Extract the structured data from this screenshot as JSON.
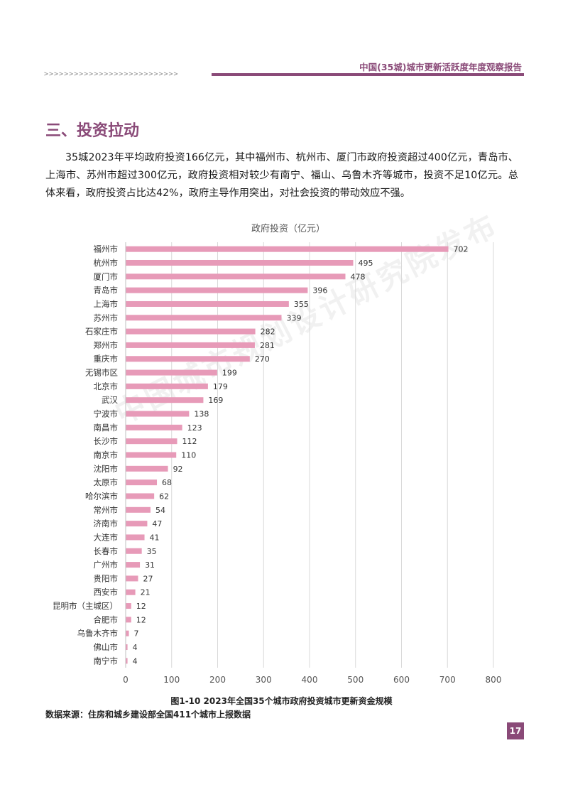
{
  "header": {
    "report_title": "中国(35城)城市更新活跃度年度观察报告",
    "arrows": ">>>>>>>>>>>>>>>>>>>>>>>>>>>"
  },
  "section": {
    "title": "三、投资拉动",
    "paragraph": "35城2023年平均政府投资166亿元，其中福州市、杭州市、厦门市政府投资超过400亿元，青岛市、上海市、苏州市超过300亿元，政府投资相对较少有南宁、福山、乌鲁木齐等城市，投资不足10亿元。总体来看，政府投资占比达42%，政府主导作用突出，对社会投资的带动效应不强。"
  },
  "watermark": "中国城市规划设计研究院发布",
  "chart_data": {
    "type": "bar",
    "orientation": "horizontal",
    "title": "政府投资（亿元）",
    "categories": [
      "福州市",
      "杭州市",
      "厦门市",
      "青岛市",
      "上海市",
      "苏州市",
      "石家庄市",
      "郑州市",
      "重庆市",
      "无锡市区",
      "北京市",
      "武汉",
      "宁波市",
      "南昌市",
      "长沙市",
      "南京市",
      "沈阳市",
      "太原市",
      "哈尔滨市",
      "常州市",
      "济南市",
      "大连市",
      "长春市",
      "广州市",
      "贵阳市",
      "西安市",
      "昆明市（主城区）",
      "合肥市",
      "乌鲁木齐市",
      "佛山市",
      "南宁市"
    ],
    "values": [
      702,
      495,
      478,
      396,
      355,
      339,
      282,
      281,
      270,
      199,
      179,
      169,
      138,
      123,
      112,
      110,
      92,
      68,
      62,
      54,
      47,
      41,
      35,
      31,
      27,
      21,
      12,
      12,
      7,
      4,
      4
    ],
    "xlim": [
      0,
      800
    ],
    "xticks": [
      "0",
      "100",
      "200",
      "300",
      "400",
      "500",
      "600",
      "700",
      "800"
    ],
    "grid": true,
    "bar_color": "#e79ab8"
  },
  "caption": "图1-10 2023年全国35个城市政府投资城市更新资金规模",
  "source": "数据来源：住房和城乡建设部全国411个城市上报数据",
  "page_number": "17"
}
